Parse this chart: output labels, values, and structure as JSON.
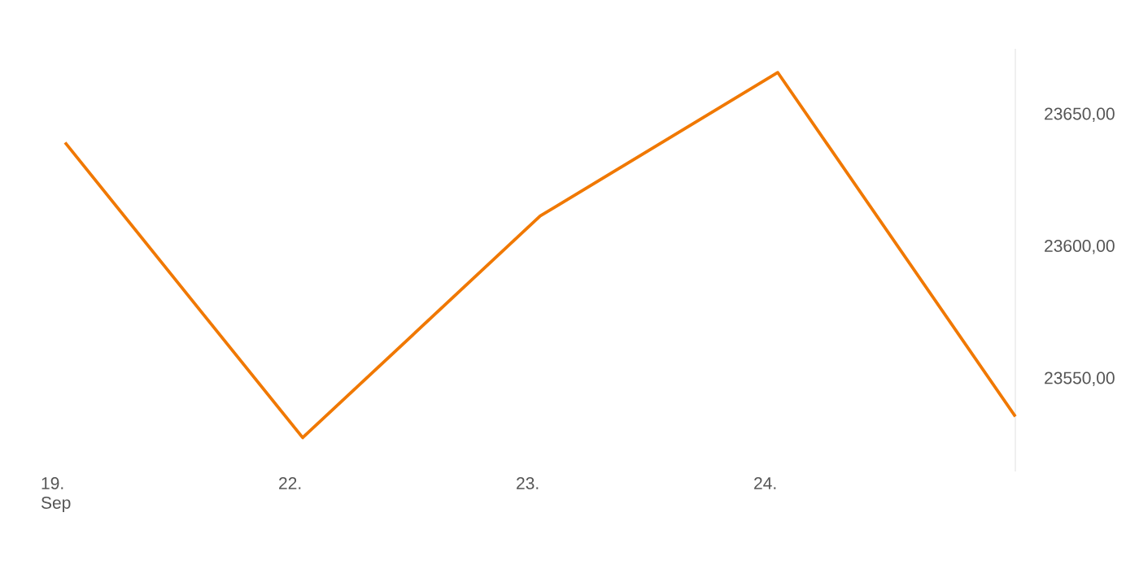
{
  "chart_data": {
    "type": "line",
    "categories": [
      "19. Sep",
      "22.",
      "23.",
      "24.",
      null
    ],
    "series": [
      {
        "color": "#f07800",
        "values": [
          23639.5,
          23527.8,
          23611.7,
          23666,
          23535.8
        ]
      }
    ],
    "ylim": [
      23515,
      23675
    ],
    "yticks": [
      {
        "value": 23550,
        "label": "23550,00"
      },
      {
        "value": 23600,
        "label": "23600,00"
      },
      {
        "value": 23650,
        "label": "23650,00"
      }
    ]
  }
}
